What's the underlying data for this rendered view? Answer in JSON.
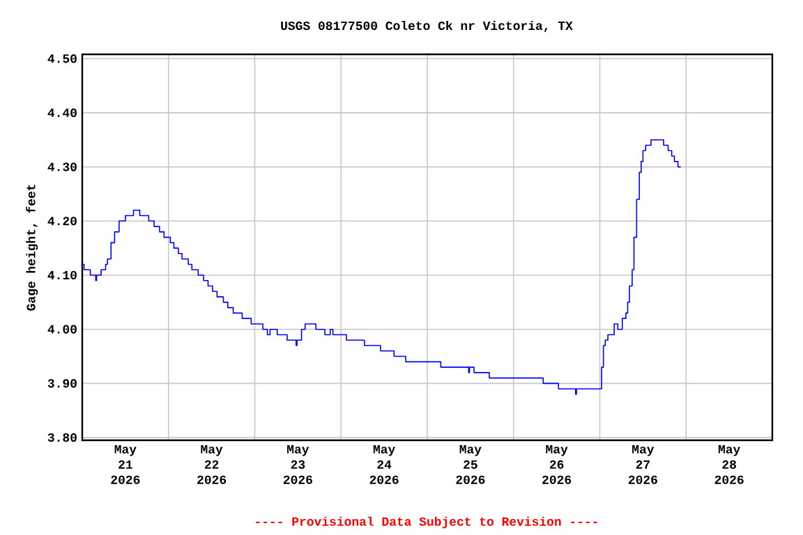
{
  "chart_data": {
    "type": "step",
    "title": "USGS 08177500 Coleto Ck nr Victoria, TX",
    "ylabel": "Gage height, feet",
    "annotations": [
      "---- Provisional Data Subject to Revision ----"
    ],
    "x": [
      "2026-05-21T00:00",
      "2026-05-21T00:30",
      "2026-05-21T02:15",
      "2026-05-21T03:45",
      "2026-05-21T04:00",
      "2026-05-21T05:15",
      "2026-05-21T06:30",
      "2026-05-21T07:00",
      "2026-05-21T08:00",
      "2026-05-21T09:00",
      "2026-05-21T10:15",
      "2026-05-21T12:00",
      "2026-05-21T14:15",
      "2026-05-21T16:00",
      "2026-05-21T18:30",
      "2026-05-21T20:00",
      "2026-05-21T21:30",
      "2026-05-21T22:45",
      "2026-05-22T00:30",
      "2026-05-22T01:30",
      "2026-05-22T02:45",
      "2026-05-22T03:45",
      "2026-05-22T05:30",
      "2026-05-22T06:30",
      "2026-05-22T08:15",
      "2026-05-22T09:45",
      "2026-05-22T11:00",
      "2026-05-22T12:15",
      "2026-05-22T13:30",
      "2026-05-22T15:15",
      "2026-05-22T16:30",
      "2026-05-22T18:00",
      "2026-05-22T20:30",
      "2026-05-22T23:00",
      "2026-05-23T02:15",
      "2026-05-23T03:30",
      "2026-05-23T04:15",
      "2026-05-23T06:15",
      "2026-05-23T09:00",
      "2026-05-23T11:30",
      "2026-05-23T11:45",
      "2026-05-23T13:00",
      "2026-05-23T14:00",
      "2026-05-23T17:00",
      "2026-05-23T19:30",
      "2026-05-23T21:00",
      "2026-05-23T21:45",
      "2026-05-24T01:30",
      "2026-05-24T06:30",
      "2026-05-24T11:00",
      "2026-05-24T14:45",
      "2026-05-24T18:00",
      "2026-05-25T03:45",
      "2026-05-25T11:30",
      "2026-05-25T11:45",
      "2026-05-25T13:00",
      "2026-05-25T17:15",
      "2026-05-26T08:15",
      "2026-05-26T12:30",
      "2026-05-26T17:15",
      "2026-05-26T17:30",
      "2026-05-27T00:30",
      "2026-05-27T01:00",
      "2026-05-27T01:30",
      "2026-05-27T02:15",
      "2026-05-27T04:00",
      "2026-05-27T05:00",
      "2026-05-27T06:15",
      "2026-05-27T07:15",
      "2026-05-27T07:45",
      "2026-05-27T08:15",
      "2026-05-27T09:00",
      "2026-05-27T09:30",
      "2026-05-27T10:15",
      "2026-05-27T11:00",
      "2026-05-27T11:30",
      "2026-05-27T12:00",
      "2026-05-27T12:45",
      "2026-05-27T14:15",
      "2026-05-27T17:45",
      "2026-05-27T19:00",
      "2026-05-27T20:00",
      "2026-05-27T20:45",
      "2026-05-27T21:45",
      "2026-05-27T22:30"
    ],
    "series": [
      {
        "color": "#0000ff",
        "values": [
          4.12,
          4.11,
          4.1,
          4.09,
          4.1,
          4.11,
          4.12,
          4.13,
          4.16,
          4.18,
          4.2,
          4.21,
          4.22,
          4.21,
          4.2,
          4.19,
          4.18,
          4.17,
          4.16,
          4.15,
          4.14,
          4.13,
          4.12,
          4.11,
          4.1,
          4.09,
          4.08,
          4.07,
          4.06,
          4.05,
          4.04,
          4.03,
          4.02,
          4.01,
          4.0,
          3.99,
          4.0,
          3.99,
          3.98,
          3.97,
          3.98,
          4.0,
          4.01,
          4.0,
          3.99,
          4.0,
          3.99,
          3.98,
          3.97,
          3.96,
          3.95,
          3.94,
          3.93,
          3.92,
          3.93,
          3.92,
          3.91,
          3.9,
          3.89,
          3.88,
          3.89,
          3.93,
          3.97,
          3.98,
          3.99,
          4.01,
          4.0,
          4.02,
          4.03,
          4.05,
          4.08,
          4.11,
          4.17,
          4.24,
          4.29,
          4.31,
          4.33,
          4.34,
          4.35,
          4.34,
          4.33,
          4.32,
          4.31,
          4.3,
          4.3
        ]
      }
    ],
    "xlim": [
      "2026-05-21T00:00",
      "2026-05-29T00:00"
    ],
    "xticks": [
      {
        "value": "2026-05-21T00:00",
        "label": null
      },
      {
        "value": "2026-05-21T12:00",
        "label": "May 21 2026"
      },
      {
        "value": "2026-05-22T00:00",
        "label": null
      },
      {
        "value": "2026-05-22T12:00",
        "label": "May 22 2026"
      },
      {
        "value": "2026-05-23T00:00",
        "label": null
      },
      {
        "value": "2026-05-23T12:00",
        "label": "May 23 2026"
      },
      {
        "value": "2026-05-24T00:00",
        "label": null
      },
      {
        "value": "2026-05-24T12:00",
        "label": "May 24 2026"
      },
      {
        "value": "2026-05-25T00:00",
        "label": null
      },
      {
        "value": "2026-05-25T12:00",
        "label": "May 25 2026"
      },
      {
        "value": "2026-05-26T00:00",
        "label": null
      },
      {
        "value": "2026-05-26T12:00",
        "label": "May 26 2026"
      },
      {
        "value": "2026-05-27T00:00",
        "label": null
      },
      {
        "value": "2026-05-27T12:00",
        "label": "May 27 2026"
      },
      {
        "value": "2026-05-28T00:00",
        "label": null
      },
      {
        "value": "2026-05-28T12:00",
        "label": "May 28 2026"
      },
      {
        "value": "2026-05-29T00:00",
        "label": null
      }
    ],
    "ylim": [
      3.795,
      4.508
    ],
    "yticks": [
      {
        "value": 3.8,
        "label": "3.80"
      },
      {
        "value": 3.9,
        "label": "3.90"
      },
      {
        "value": 4.0,
        "label": "4.00"
      },
      {
        "value": 4.1,
        "label": "4.10"
      },
      {
        "value": 4.2,
        "label": "4.20"
      },
      {
        "value": 4.3,
        "label": "4.30"
      },
      {
        "value": 4.4,
        "label": "4.40"
      },
      {
        "value": 4.5,
        "label": "4.50"
      }
    ],
    "grid": true,
    "marker": "none",
    "line_style": "solid"
  }
}
